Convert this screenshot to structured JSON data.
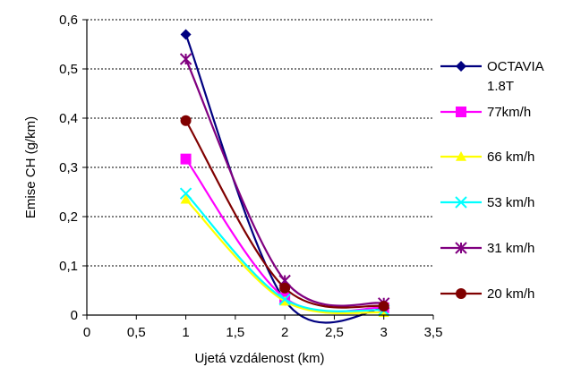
{
  "chart_data": {
    "type": "line",
    "title": "",
    "xlabel": "Ujetá vzdálenost (km)",
    "ylabel": "Emise CH (g/km)",
    "xlim": [
      0,
      3.5
    ],
    "ylim": [
      0,
      0.6
    ],
    "x_ticks": [
      0,
      0.5,
      1,
      1.5,
      2,
      2.5,
      3,
      3.5
    ],
    "x_tick_labels": [
      "0",
      "0,5",
      "1",
      "1,5",
      "2",
      "2,5",
      "3",
      "3,5"
    ],
    "y_ticks": [
      0,
      0.1,
      0.2,
      0.3,
      0.4,
      0.5,
      0.6
    ],
    "y_tick_labels": [
      "0",
      "0,1",
      "0,2",
      "0,3",
      "0,4",
      "0,5",
      "0,6"
    ],
    "grid": "horizontal dashed",
    "legend_position": "right",
    "series": [
      {
        "name": "OCTAVIA 1.8T",
        "name_lines": [
          "OCTAVIA",
          "1.8T"
        ],
        "color": "#000080",
        "marker": "diamond",
        "points": [
          [
            1,
            0.57
          ],
          [
            2,
            0.03
          ],
          [
            3,
            0.013
          ]
        ]
      },
      {
        "name": "77km/h",
        "name_lines": [
          "77km/h"
        ],
        "color": "#ff00ff",
        "marker": "square",
        "points": [
          [
            1,
            0.317
          ],
          [
            2,
            0.035
          ],
          [
            3,
            0.015
          ]
        ]
      },
      {
        "name": "66 km/h",
        "name_lines": [
          "66 km/h"
        ],
        "color": "#ffff00",
        "marker": "triangle",
        "points": [
          [
            1,
            0.235
          ],
          [
            2,
            0.028
          ],
          [
            3,
            0.005
          ]
        ]
      },
      {
        "name": "53 km/h",
        "name_lines": [
          "53 km/h"
        ],
        "color": "#00ffff",
        "marker": "x",
        "points": [
          [
            1,
            0.247
          ],
          [
            2,
            0.032
          ],
          [
            3,
            0.01
          ]
        ]
      },
      {
        "name": "31 km/h",
        "name_lines": [
          "31 km/h"
        ],
        "color": "#800080",
        "marker": "star",
        "points": [
          [
            1,
            0.52
          ],
          [
            2,
            0.07
          ],
          [
            3,
            0.024
          ]
        ]
      },
      {
        "name": "20 km/h",
        "name_lines": [
          "20 km/h"
        ],
        "color": "#800000",
        "marker": "circle",
        "points": [
          [
            1,
            0.395
          ],
          [
            2,
            0.055
          ],
          [
            3,
            0.018
          ]
        ]
      }
    ]
  }
}
